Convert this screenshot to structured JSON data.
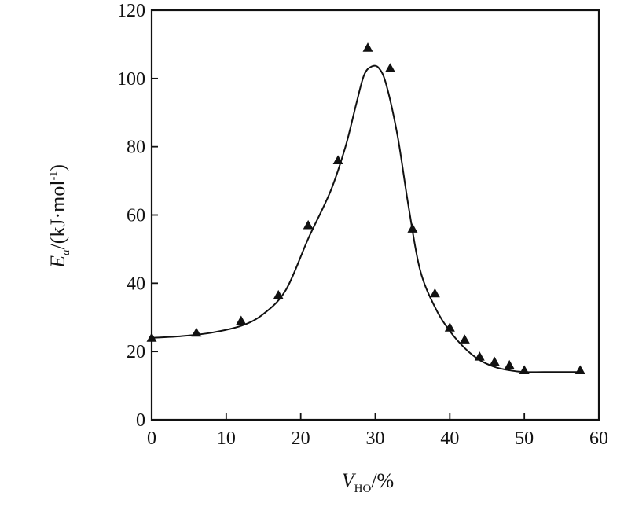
{
  "chart_data": {
    "type": "scatter",
    "title": "",
    "xlabel": {
      "main": "V",
      "sub": "HO",
      "suffix": "/%"
    },
    "ylabel": {
      "main": "E",
      "sub": "a",
      "suffix": "/(kJ·mol",
      "sup": "-1",
      "close": ")"
    },
    "xlim": [
      0,
      60
    ],
    "ylim": [
      0,
      120
    ],
    "x_ticks": [
      0,
      10,
      20,
      30,
      40,
      50,
      60
    ],
    "y_ticks": [
      0,
      20,
      40,
      60,
      80,
      100,
      120
    ],
    "x_tick_labels": [
      "0",
      "10",
      "20",
      "30",
      "40",
      "50",
      "60"
    ],
    "y_tick_labels": [
      "0",
      "20",
      "40",
      "60",
      "80",
      "100",
      "120"
    ],
    "grid": false,
    "marker": "triangle",
    "series": [
      {
        "points": [
          {
            "x": 0,
            "y": 24
          },
          {
            "x": 6,
            "y": 25.5
          },
          {
            "x": 12,
            "y": 29
          },
          {
            "x": 17,
            "y": 36.5
          },
          {
            "x": 21,
            "y": 57
          },
          {
            "x": 25,
            "y": 76
          },
          {
            "x": 29,
            "y": 109
          },
          {
            "x": 32,
            "y": 103
          },
          {
            "x": 35,
            "y": 56
          },
          {
            "x": 38,
            "y": 37
          },
          {
            "x": 40,
            "y": 27
          },
          {
            "x": 42,
            "y": 23.5
          },
          {
            "x": 44,
            "y": 18.5
          },
          {
            "x": 46,
            "y": 17
          },
          {
            "x": 48,
            "y": 16
          },
          {
            "x": 50,
            "y": 14.5
          },
          {
            "x": 57.5,
            "y": 14.5
          }
        ],
        "fit_curve": [
          [
            0,
            24
          ],
          [
            4,
            24.5
          ],
          [
            8,
            25.5
          ],
          [
            12,
            27.5
          ],
          [
            15,
            31
          ],
          [
            18,
            38
          ],
          [
            21,
            53
          ],
          [
            24,
            67
          ],
          [
            26,
            80
          ],
          [
            27.5,
            93
          ],
          [
            28.5,
            101
          ],
          [
            29.5,
            103.5
          ],
          [
            30.5,
            103
          ],
          [
            31.5,
            98
          ],
          [
            33,
            83
          ],
          [
            34.5,
            62
          ],
          [
            36,
            44
          ],
          [
            38,
            33
          ],
          [
            40,
            26
          ],
          [
            42,
            21
          ],
          [
            44,
            17.5
          ],
          [
            46,
            15.5
          ],
          [
            48,
            14.5
          ],
          [
            50,
            14
          ],
          [
            54,
            14
          ],
          [
            57.5,
            14
          ]
        ]
      }
    ]
  }
}
